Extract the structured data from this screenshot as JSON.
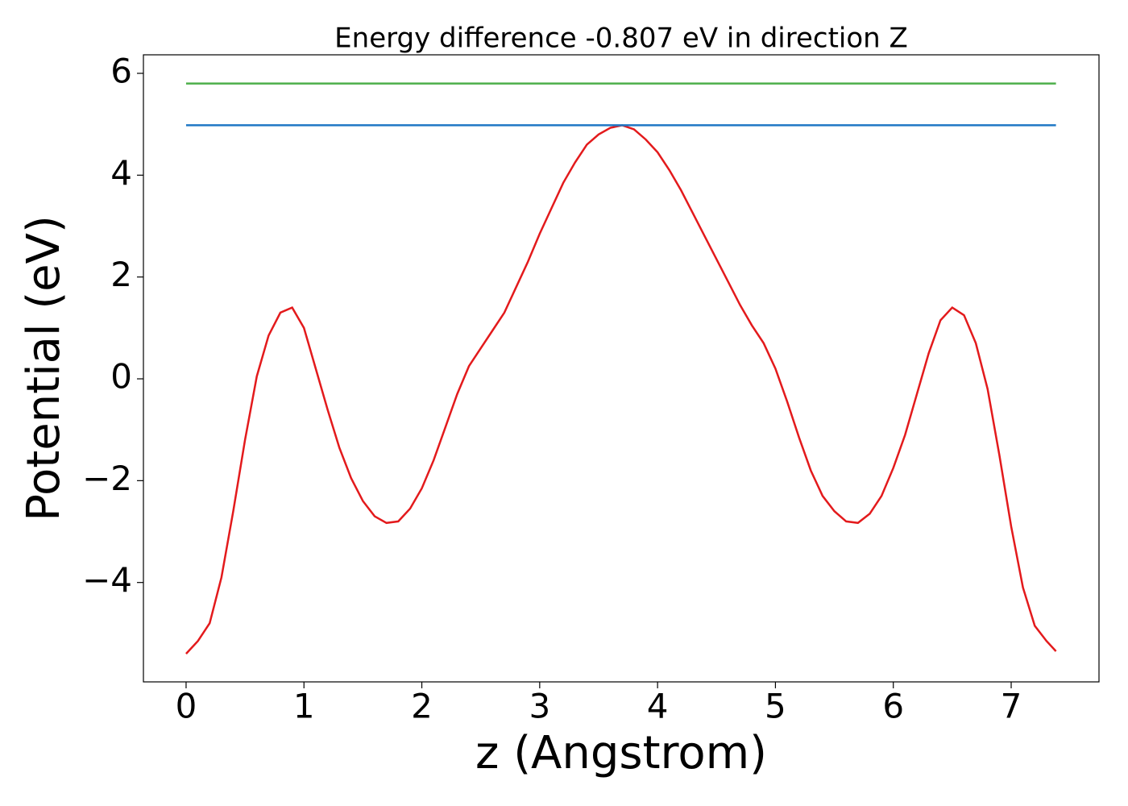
{
  "chart_data": {
    "type": "line",
    "title": "Energy difference -0.807 eV in direction Z",
    "x_label": "z (Angstrom)",
    "y_label": "Potential (eV)",
    "xlim": [
      -0.362,
      7.745
    ],
    "ylim": [
      -5.952,
      6.364
    ],
    "xticks": [
      0,
      1,
      2,
      3,
      4,
      5,
      6,
      7
    ],
    "yticks": [
      {
        "value": -4,
        "label": "−4"
      },
      {
        "value": -2,
        "label": "−2"
      },
      0,
      2,
      4,
      6
    ],
    "series": [
      {
        "color": "#e31a1c",
        "x": [
          0,
          0.1,
          0.2,
          0.3,
          0.4,
          0.5,
          0.6,
          0.7,
          0.8,
          0.9,
          1.0,
          1.1,
          1.2,
          1.3,
          1.4,
          1.5,
          1.6,
          1.7,
          1.8,
          1.9,
          2.0,
          2.1,
          2.2,
          2.3,
          2.4,
          2.5,
          2.6,
          2.7,
          2.8,
          2.9,
          3.0,
          3.1,
          3.2,
          3.3,
          3.4,
          3.5,
          3.6,
          3.7,
          3.8,
          3.9,
          4.0,
          4.1,
          4.2,
          4.3,
          4.4,
          4.5,
          4.6,
          4.7,
          4.8,
          4.9,
          5.0,
          5.1,
          5.2,
          5.3,
          5.4,
          5.5,
          5.6,
          5.7,
          5.8,
          5.9,
          6.0,
          6.1,
          6.2,
          6.3,
          6.4,
          6.5,
          6.6,
          6.7,
          6.8,
          6.9,
          7.0,
          7.1,
          7.2,
          7.3,
          7.38
        ],
        "values": [
          -5.4,
          -5.15,
          -4.8,
          -3.9,
          -2.6,
          -1.2,
          0.05,
          0.85,
          1.3,
          1.4,
          1.0,
          0.2,
          -0.6,
          -1.35,
          -1.95,
          -2.4,
          -2.7,
          -2.83,
          -2.8,
          -2.55,
          -2.15,
          -1.6,
          -0.95,
          -0.3,
          0.25,
          0.6,
          0.95,
          1.3,
          1.8,
          2.3,
          2.85,
          3.35,
          3.85,
          4.25,
          4.6,
          4.8,
          4.93,
          4.98,
          4.9,
          4.7,
          4.45,
          4.1,
          3.7,
          3.25,
          2.8,
          2.35,
          1.9,
          1.45,
          1.05,
          0.7,
          0.2,
          -0.45,
          -1.15,
          -1.8,
          -2.3,
          -2.6,
          -2.8,
          -2.83,
          -2.65,
          -2.3,
          -1.75,
          -1.1,
          -0.3,
          0.5,
          1.15,
          1.4,
          1.25,
          0.7,
          -0.2,
          -1.5,
          -2.9,
          -4.1,
          -4.85,
          -5.15,
          -5.35
        ]
      },
      {
        "color": "#1f77c4",
        "x": [
          0,
          7.38
        ],
        "values": [
          4.98,
          4.98
        ]
      },
      {
        "color": "#4daf4a",
        "x": [
          0,
          7.38
        ],
        "values": [
          5.8,
          5.8
        ]
      }
    ]
  }
}
